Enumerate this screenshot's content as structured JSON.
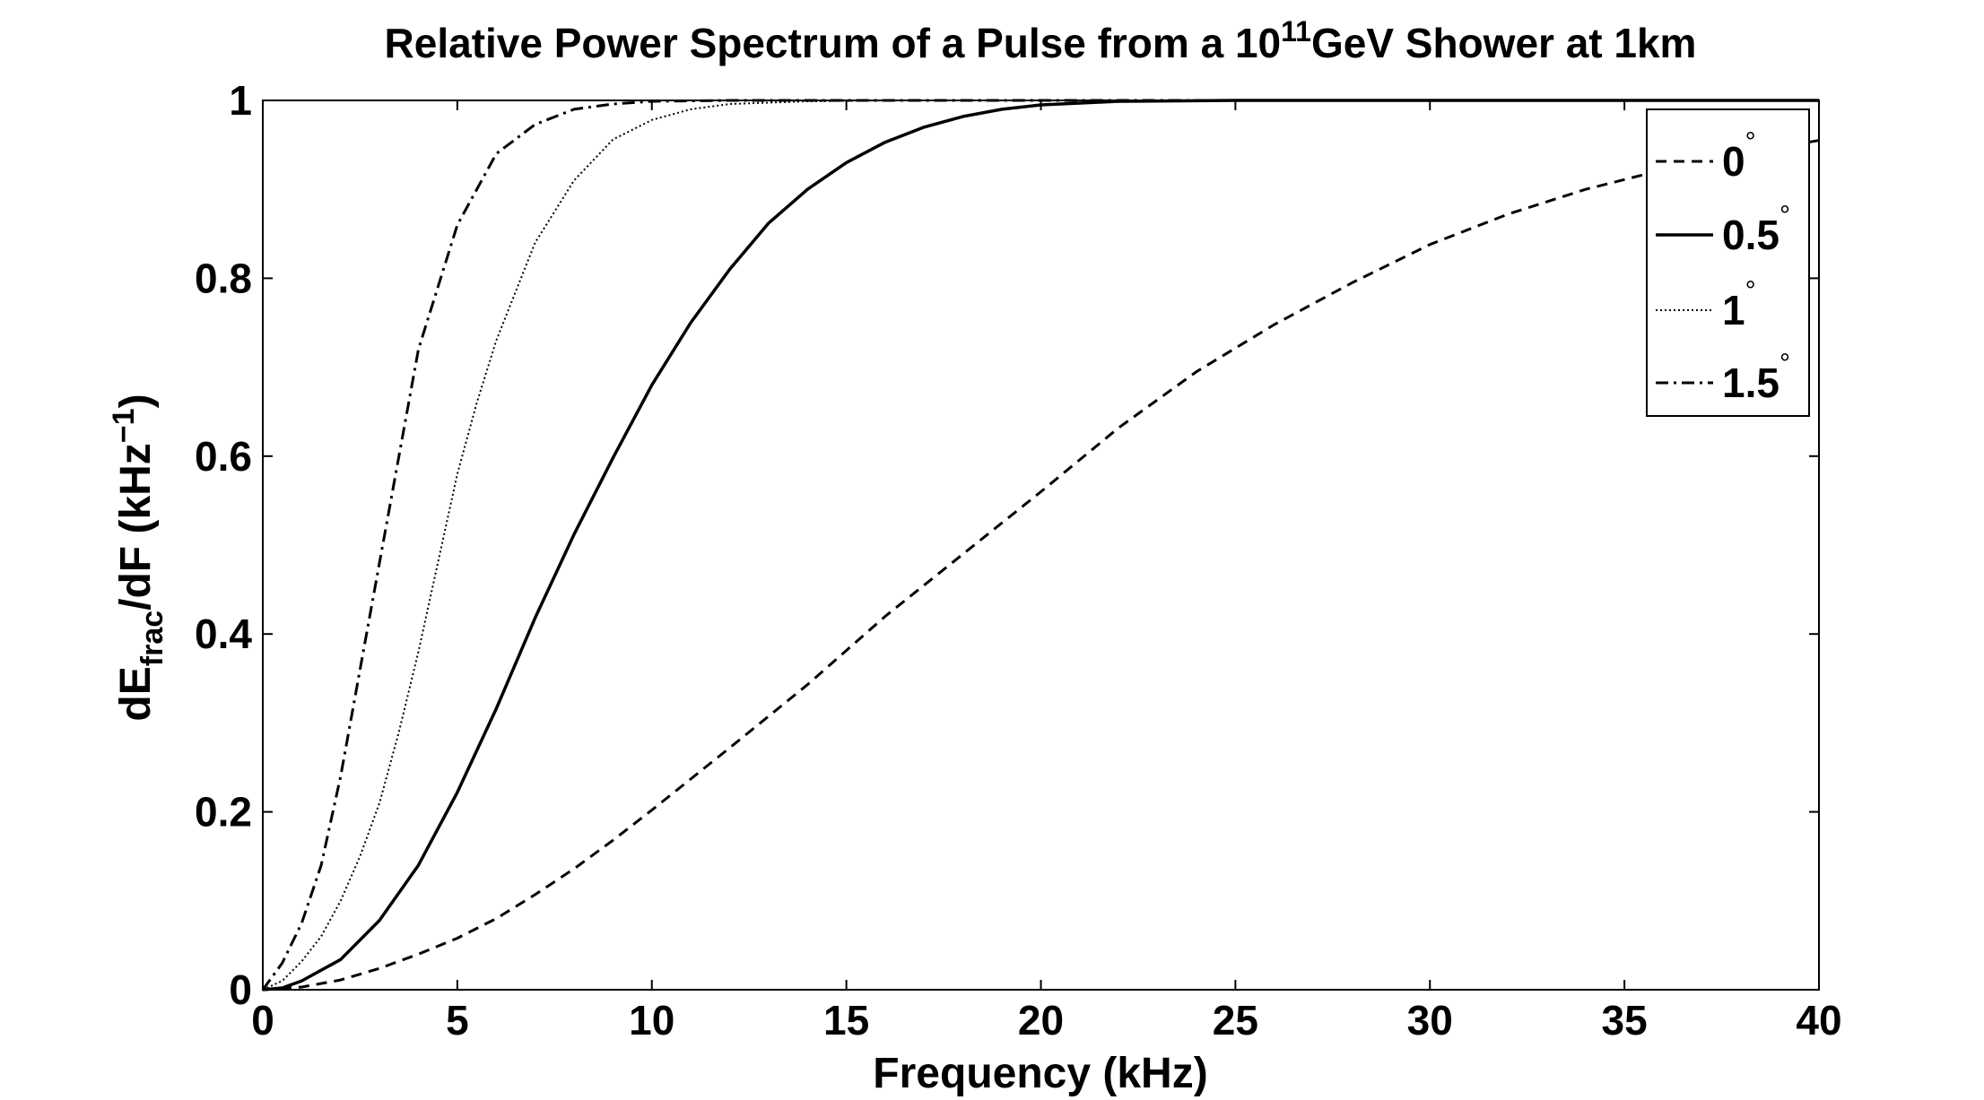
{
  "chart_data": {
    "type": "line",
    "title": {
      "before": "Relative Power Spectrum of a Pulse from a 10",
      "superscript": "11",
      "after": "GeV Shower at 1km"
    },
    "xlabel": "Frequency (kHz)",
    "ylabel": {
      "part1": "dE",
      "sub": "frac",
      "part2": "/dF (kHz",
      "sup": "−1",
      "part3": ")"
    },
    "xlim": [
      0,
      40
    ],
    "ylim": [
      0,
      1
    ],
    "x_ticks": [
      0,
      5,
      10,
      15,
      20,
      25,
      30,
      35,
      40
    ],
    "y_ticks": [
      0,
      0.2,
      0.4,
      0.6,
      0.8,
      1
    ],
    "y_tick_labels": [
      "0",
      "0.2",
      "0.4",
      "0.6",
      "0.8",
      "1"
    ],
    "grid": false,
    "legend_position": "top-right",
    "series": [
      {
        "name": "0",
        "degree_mark": "°",
        "line_style": "dashed",
        "x": [
          0,
          1,
          2,
          3,
          4,
          5,
          6,
          7,
          8,
          9,
          10,
          12,
          14,
          16,
          18,
          20,
          22,
          24,
          26,
          28,
          30,
          32,
          34,
          36,
          38,
          40
        ],
        "y": [
          0,
          0.003,
          0.011,
          0.024,
          0.04,
          0.058,
          0.08,
          0.107,
          0.136,
          0.168,
          0.202,
          0.272,
          0.343,
          0.42,
          0.49,
          0.56,
          0.632,
          0.695,
          0.748,
          0.795,
          0.838,
          0.872,
          0.9,
          0.922,
          0.94,
          0.955
        ]
      },
      {
        "name": "0.5",
        "degree_mark": "°",
        "line_style": "solid",
        "x": [
          0,
          0.5,
          1,
          2,
          3,
          4,
          5,
          6,
          7,
          8,
          9,
          10,
          11,
          12,
          13,
          14,
          15,
          16,
          17,
          18,
          19,
          20,
          22,
          25,
          30,
          35,
          40
        ],
        "y": [
          0,
          0.002,
          0.01,
          0.034,
          0.078,
          0.14,
          0.222,
          0.316,
          0.418,
          0.512,
          0.598,
          0.68,
          0.75,
          0.81,
          0.862,
          0.9,
          0.93,
          0.953,
          0.97,
          0.982,
          0.99,
          0.995,
          0.999,
          1.0,
          1.0,
          1.0,
          1.0
        ]
      },
      {
        "name": "1",
        "degree_mark": "°",
        "line_style": "dotted",
        "x": [
          0,
          0.5,
          1,
          1.5,
          2,
          2.5,
          3,
          3.5,
          4,
          4.5,
          5,
          5.5,
          6,
          7,
          8,
          9,
          10,
          11,
          12,
          14,
          16,
          20,
          25,
          30,
          35,
          40
        ],
        "y": [
          0,
          0.01,
          0.032,
          0.06,
          0.1,
          0.15,
          0.21,
          0.29,
          0.38,
          0.48,
          0.58,
          0.66,
          0.73,
          0.84,
          0.91,
          0.956,
          0.978,
          0.99,
          0.996,
          0.999,
          1.0,
          1.0,
          1.0,
          1.0,
          1.0,
          1.0
        ]
      },
      {
        "name": "1.5",
        "degree_mark": "°",
        "line_style": "dashdot",
        "x": [
          0,
          0.5,
          1,
          1.5,
          2,
          2.5,
          3,
          3.5,
          4,
          5,
          6,
          7,
          8,
          9,
          10,
          12,
          15,
          20,
          25,
          30,
          35,
          40
        ],
        "y": [
          0,
          0.03,
          0.075,
          0.14,
          0.24,
          0.36,
          0.48,
          0.6,
          0.72,
          0.86,
          0.94,
          0.973,
          0.99,
          0.996,
          0.999,
          1.0,
          1.0,
          1.0,
          1.0,
          1.0,
          1.0,
          1.0
        ]
      }
    ]
  }
}
